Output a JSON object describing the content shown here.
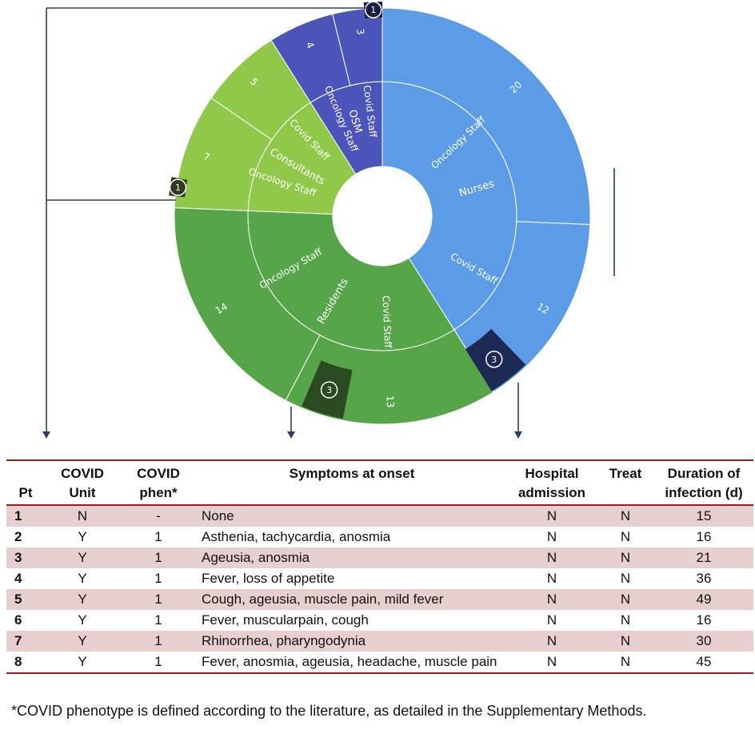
{
  "chart_data": {
    "type": "sunburst",
    "rings": [
      {
        "name": "Nurses",
        "total": 32,
        "color": "#5c9ce6",
        "children": [
          {
            "name": "Oncology Staff",
            "value": 20
          },
          {
            "name": "Covid Staff",
            "value": 12
          }
        ]
      },
      {
        "name": "Residents",
        "total": 27,
        "color": "#56a548",
        "children": [
          {
            "name": "Covid Staff",
            "value": 13
          },
          {
            "name": "Oncology Staff",
            "value": 14
          }
        ]
      },
      {
        "name": "Consultants",
        "total": 12,
        "color": "#90c84a",
        "children": [
          {
            "name": "Oncology Staff",
            "value": 7
          },
          {
            "name": "Covid Staff",
            "value": 5
          }
        ]
      },
      {
        "name": "OSM",
        "total": 7,
        "color": "#4b54b8",
        "children": [
          {
            "name": "Oncology Staff",
            "value": 4
          },
          {
            "name": "Covid Staff",
            "value": 3
          }
        ]
      }
    ],
    "infected_badges": [
      {
        "group": "Nurses",
        "subgroup": "Covid Staff",
        "count": "3"
      },
      {
        "group": "Residents",
        "subgroup": "Covid Staff",
        "count": "3"
      },
      {
        "group": "Consultants",
        "subgroup": "Oncology Staff",
        "count": "1"
      },
      {
        "group": "OSM",
        "subgroup": "Covid Staff",
        "count": "1"
      }
    ]
  },
  "table": {
    "headers": {
      "pt": "Pt",
      "unit1": "COVID",
      "unit2": "Unit",
      "phen1": "COVID",
      "phen2": "phen*",
      "symptoms": "Symptoms at onset",
      "hosp1": "Hospital",
      "hosp2": "admission",
      "treat": "Treat",
      "dur1": "Duration of",
      "dur2": "infection (d)"
    },
    "rows": [
      {
        "pt": "1",
        "unit": "N",
        "phen": "-",
        "symptoms": "None",
        "hosp": "N",
        "treat": "N",
        "duration": "15"
      },
      {
        "pt": "2",
        "unit": "Y",
        "phen": "1",
        "symptoms": "Asthenia, tachycardia, anosmia",
        "hosp": "N",
        "treat": "N",
        "duration": "16"
      },
      {
        "pt": "3",
        "unit": "Y",
        "phen": "1",
        "symptoms": "Ageusia, anosmia",
        "hosp": "N",
        "treat": "N",
        "duration": "21"
      },
      {
        "pt": "4",
        "unit": "Y",
        "phen": "1",
        "symptoms": "Fever, loss of appetite",
        "hosp": "N",
        "treat": "N",
        "duration": "36"
      },
      {
        "pt": "5",
        "unit": "Y",
        "phen": "1",
        "symptoms": "Cough, ageusia, muscle pain, mild fever",
        "hosp": "N",
        "treat": "N",
        "duration": "49"
      },
      {
        "pt": "6",
        "unit": "Y",
        "phen": "1",
        "symptoms": "Fever, muscularpain, cough",
        "hosp": "N",
        "treat": "N",
        "duration": "16"
      },
      {
        "pt": "7",
        "unit": "Y",
        "phen": "1",
        "symptoms": "Rhinorrhea, pharyngodynia",
        "hosp": "N",
        "treat": "N",
        "duration": "30"
      },
      {
        "pt": "8",
        "unit": "Y",
        "phen": "1",
        "symptoms": "Fever, anosmia, ageusia, headache, muscle pain",
        "hosp": "N",
        "treat": "N",
        "duration": "45"
      }
    ]
  },
  "footnote": "*COVID phenotype is defined according to the literature, as detailed in the Supplementary Methods."
}
